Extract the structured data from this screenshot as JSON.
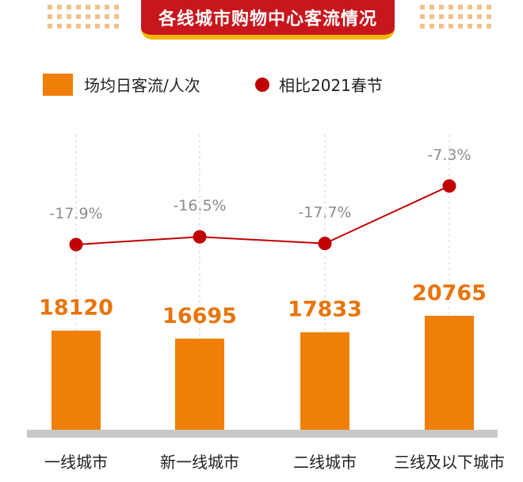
{
  "title": "各线城市购物中心客流情况",
  "legend": {
    "bar_label": "场均日客流/人次",
    "dot_label": "相比2021春节"
  },
  "colors": {
    "bar": "#f07f09",
    "line": "#c00000",
    "value_text": "#e8740c",
    "pct_text": "#8c8c8c",
    "title_bg": "#c8161d",
    "title_underline": "#f2b705",
    "baseline": "#c8c8c8"
  },
  "chart_data": {
    "type": "bar",
    "title": "各线城市购物中心客流情况",
    "categories": [
      "一线城市",
      "新一线城市",
      "二线城市",
      "三线及以下城市"
    ],
    "series": [
      {
        "name": "场均日客流/人次",
        "type": "bar",
        "values": [
          18120,
          16695,
          17833,
          20765
        ]
      },
      {
        "name": "相比2021春节",
        "type": "line",
        "values": [
          -17.9,
          -16.5,
          -17.7,
          -7.3
        ],
        "labels": [
          "-17.9%",
          "-16.5%",
          "-17.7%",
          "-7.3%"
        ]
      }
    ]
  }
}
